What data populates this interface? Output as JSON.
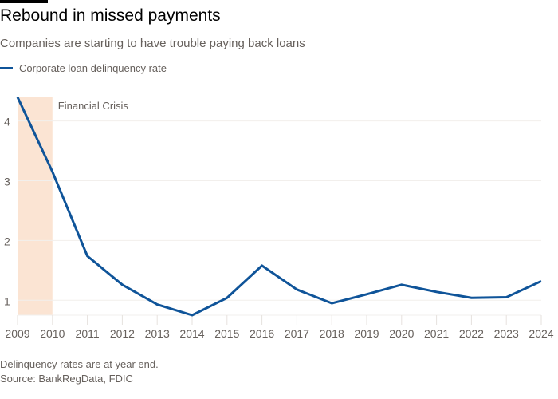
{
  "header": {
    "title": "Rebound in missed payments",
    "subtitle": "Companies are starting to have trouble paying back loans"
  },
  "colors": {
    "line": "#0f5499",
    "shade": "#fbe4d3",
    "grid": "#f2efec",
    "text": "#66605c"
  },
  "chart_data": {
    "type": "line",
    "title": "Rebound in missed payments",
    "subtitle": "Companies are starting to have trouble paying back loans",
    "x": [
      2009,
      2010,
      2011,
      2012,
      2013,
      2014,
      2015,
      2016,
      2017,
      2018,
      2019,
      2020,
      2021,
      2022,
      2023,
      2024
    ],
    "series": [
      {
        "name": "Corporate loan delinquency rate",
        "values": [
          4.4,
          3.15,
          1.74,
          1.26,
          0.93,
          0.75,
          1.04,
          1.58,
          1.18,
          0.95,
          1.1,
          1.26,
          1.14,
          1.04,
          1.05,
          1.32
        ]
      }
    ],
    "yticks": [
      1,
      2,
      3,
      4
    ],
    "ylim": [
      0.75,
      4.4
    ],
    "xlim": [
      2009,
      2024
    ],
    "grid": true,
    "legend": "top-left",
    "annotations": [
      {
        "label": "Financial Crisis",
        "start": 2009,
        "end": 2010
      }
    ]
  },
  "footer": {
    "note": "Delinquency rates are at year end.",
    "source": "Source: BankRegData, FDIC"
  }
}
